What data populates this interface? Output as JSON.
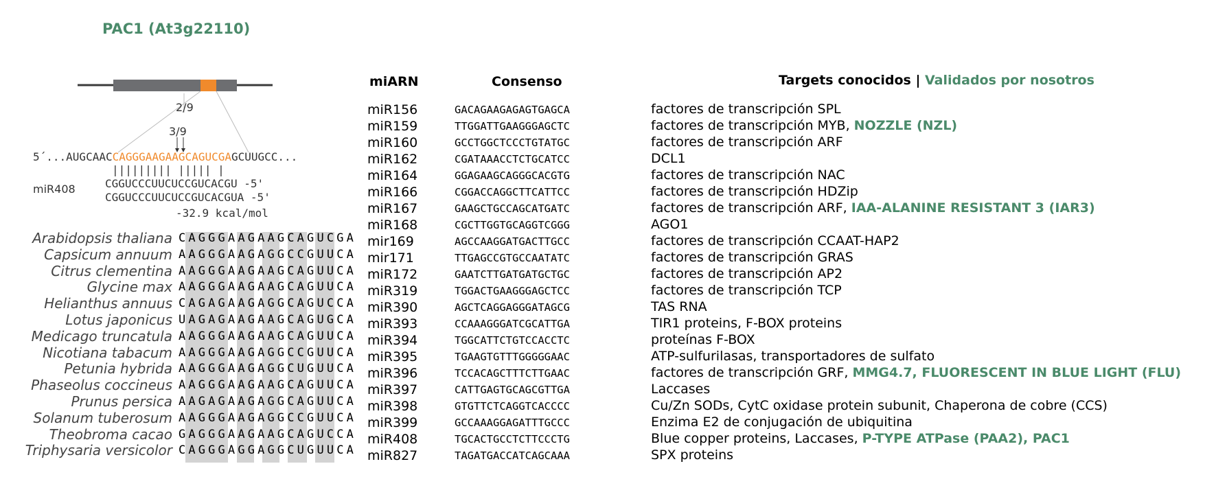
{
  "gene_title": "PAC1 (At3g22110)",
  "gene_model": {
    "ratio_2": "2/9",
    "ratio_3": "3/9"
  },
  "seq_5prime": {
    "prefix": "5´...AUGCAAC",
    "site": "CAGGGAAGAAGCAGUCGA",
    "suffix": "GCUUGCC..."
  },
  "pairing_bars": "||||||||| |||||  |",
  "mirna_label": "miR408",
  "mirna_seq_1": "CGGUCCCUUCUCCGUCACGU  -5'",
  "mirna_seq_2": "CGGUCCCUUCUCCGUCACGUA -5'",
  "energy": "-32.9 kcal/mol",
  "colors": {
    "green": "#4a8a6a",
    "orange": "#f08a2c",
    "gray_box": "#6d6e71",
    "shade": "#d3d3d3"
  },
  "alignment": [
    {
      "species": "Arabidopsis thaliana",
      "seq": "CAGGGAAGAAGCAGUCGA"
    },
    {
      "species": "Capsicum annuum",
      "seq": "AAGGGAAGAGGCCGUUCA"
    },
    {
      "species": "Citrus clementina",
      "seq": "AAGGGAAGAAGCAGUUCA"
    },
    {
      "species": "Glycine max",
      "seq": "AAGGGAAGAAGCAGUUCA"
    },
    {
      "species": "Helianthus annuus",
      "seq": "CAGAGAAGAGGCAGUCCA"
    },
    {
      "species": "Lotus japonicus",
      "seq": "UAGAGAAGAAGCAGUGCA"
    },
    {
      "species": "Medicago truncatula",
      "seq": "AAGGGAAGAAGCAGUUCA"
    },
    {
      "species": "Nicotiana tabacum",
      "seq": "AAGGGAAGAGGCCGUUCA"
    },
    {
      "species": "Petunia hybrida",
      "seq": "AAGGGAAGAGGCUGUUCA"
    },
    {
      "species": "Phaseolus coccineus",
      "seq": "AAGGGAAGAAGCAGUUCA"
    },
    {
      "species": "Prunus persica",
      "seq": "AAGAGAAGAGGCAGUUCA"
    },
    {
      "species": "Solanum tuberosum",
      "seq": "AAGGGAAGAGGCCGUUCA"
    },
    {
      "species": "Theobroma cacao",
      "seq": "GAGGGAAGAAGCAGUCCA"
    },
    {
      "species": "Triphysaria versicolor",
      "seq": "CAGGGAGGAGGCUGUUCA"
    }
  ],
  "table_headers": {
    "mirna": "miARN",
    "consensus": "Consenso",
    "targets": "Targets conocidos |",
    "validated": "Validados por nosotros"
  },
  "rows": [
    {
      "mirna": "miR156",
      "cons": "GACAGAAGAGAGTGAGCA",
      "target": "factores de transcripción SPL",
      "validated": ""
    },
    {
      "mirna": "miR159",
      "cons": "TTGGATTGAAGGGAGCTC",
      "target": "factores de transcripción MYB, ",
      "validated": "NOZZLE (NZL)"
    },
    {
      "mirna": "miR160",
      "cons": "GCCTGGCTCCCTGTATGC",
      "target": "factores de transcripción ARF",
      "validated": ""
    },
    {
      "mirna": "miR162",
      "cons": "CGATAAACCTCTGCATCC",
      "target": "DCL1",
      "validated": ""
    },
    {
      "mirna": "miR164",
      "cons": "GGAGAAGCAGGGCACGTG",
      "target": "factores de transcripción NAC",
      "validated": ""
    },
    {
      "mirna": "miR166",
      "cons": "CGGACCAGGCTTCATTCC",
      "target": "factores de transcripción HDZip",
      "validated": ""
    },
    {
      "mirna": "miR167",
      "cons": "GAAGCTGCCAGCATGATC",
      "target": "factores de transcripción ARF, ",
      "validated": "IAA-ALANINE RESISTANT 3 (IAR3)"
    },
    {
      "mirna": "miR168",
      "cons": "CGCTTGGTGCAGGTCGGG",
      "target": "AGO1",
      "validated": ""
    },
    {
      "mirna": "mir169",
      "cons": "AGCCAAGGATGACTTGCC",
      "target": "factores de transcripción CCAAT-HAP2",
      "validated": ""
    },
    {
      "mirna": "mir171",
      "cons": "TTGAGCCGTGCCAATATC",
      "target": "factores de transcripción GRAS",
      "validated": ""
    },
    {
      "mirna": "miR172",
      "cons": "GAATCTTGATGATGCTGC",
      "target": "factores de transcripción AP2",
      "validated": ""
    },
    {
      "mirna": "miR319",
      "cons": "TGGACTGAAGGGAGCTCC",
      "target": "factores de transcripción TCP",
      "validated": ""
    },
    {
      "mirna": "miR390",
      "cons": "AGCTCAGGAGGGATAGCG",
      "target": "TAS RNA",
      "validated": ""
    },
    {
      "mirna": "miR393",
      "cons": "CCAAAGGGATCGCATTGA",
      "target": "TIR1 proteins, F-BOX proteins",
      "validated": ""
    },
    {
      "mirna": "miR394",
      "cons": "TGGCATTCTGTCCACCTC",
      "target": "proteínas F-BOX",
      "validated": ""
    },
    {
      "mirna": "miR395",
      "cons": "TGAAGTGTTTGGGGGAAC",
      "target": "ATP-sulfurilasas, transportadores de sulfato",
      "validated": ""
    },
    {
      "mirna": "miR396",
      "cons": "TCCACAGCTTTCTTGAAC",
      "target": "factores de transcripción GRF, ",
      "validated": "MMG4.7, FLUORESCENT IN BLUE LIGHT (FLU)"
    },
    {
      "mirna": "miR397",
      "cons": "CATTGAGTGCAGCGTTGA",
      "target": "Laccases",
      "validated": ""
    },
    {
      "mirna": "miR398",
      "cons": "GTGTTCTCAGGTCACCCC",
      "target": "Cu/Zn SODs, CytC oxidase protein subunit, Chaperona de cobre (CCS)",
      "validated": ""
    },
    {
      "mirna": "miR399",
      "cons": "GCCAAAGGAGATTTGCCC",
      "target": "Enzima E2 de conjugación de ubiquitina",
      "validated": ""
    },
    {
      "mirna": "miR408",
      "cons": "TGCACTGCCTCTTCCCTG",
      "target": "Blue copper proteins, Laccases, ",
      "validated": "P-TYPE ATPase (PAA2), PAC1"
    },
    {
      "mirna": "miR827",
      "cons": "TAGATGACCATCAGCAAA",
      "target": "SPX proteins",
      "validated": ""
    }
  ]
}
